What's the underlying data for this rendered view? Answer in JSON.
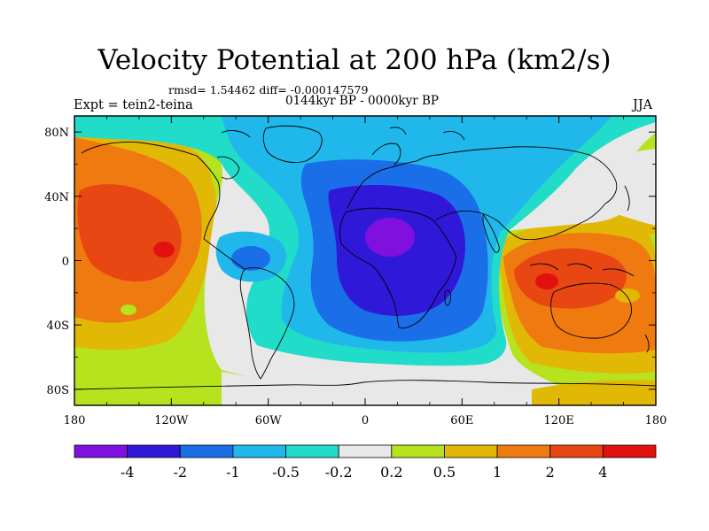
{
  "chart_data": {
    "type": "heatmap",
    "title": "Velocity Potential at 200 hPa (km2/s)",
    "stats_text": "rmsd= 1.54462 diff= -0.000147579",
    "period_text": "0144kyr BP - 0000kyr BP",
    "left_label": "Expt = tein2-teina",
    "right_label": "JJA",
    "projection": "cylindrical equidistant",
    "xlim": [
      -180,
      180
    ],
    "ylim": [
      -90,
      90
    ],
    "x_tick_labels": [
      "180",
      "120W",
      "60W",
      "0",
      "60E",
      "120E",
      "180"
    ],
    "y_tick_labels": [
      "80N",
      "40N",
      "0",
      "40S",
      "80S"
    ],
    "colorbar": {
      "levels": [
        "-4",
        "-2",
        "-1",
        "-0.5",
        "-0.2",
        "0.2",
        "0.5",
        "1",
        "2",
        "4"
      ],
      "colors": [
        "#7f10e0",
        "#3018d8",
        "#1a6fe8",
        "#20b8ea",
        "#20dcc8",
        "#e8e8e8",
        "#b6e21e",
        "#e2b806",
        "#ef7a10",
        "#e84612",
        "#e31010"
      ]
    },
    "features": [
      {
        "name": "Africa minimum (velocity potential < -4)",
        "lon": 15,
        "lat": 10,
        "min_value": "-4"
      },
      {
        "name": "Eastern Pacific maximum (> 4)",
        "lon": -130,
        "lat": 5,
        "max_value": "4"
      },
      {
        "name": "Maritime Continent / Indian Ocean maximum (> 4)",
        "lon": 105,
        "lat": -10,
        "max_value": "4"
      },
      {
        "name": "South Atlantic / Antarctic near-zero band",
        "lon": -30,
        "lat": -75,
        "range": "-0.2 to 0.2"
      }
    ]
  }
}
